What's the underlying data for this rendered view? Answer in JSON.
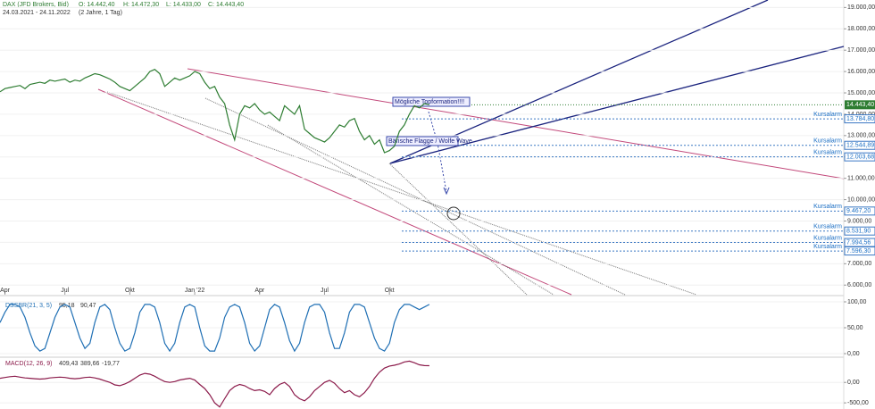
{
  "header": {
    "title": "DAX (JFD Brokers, Bid)",
    "ohlc": [
      "O: 14.442,40",
      "H: 14.472,30",
      "L: 14.433,00",
      "C: 14.443,40"
    ],
    "range": "24.03.2021 - 24.11.2022",
    "period": "(2 Jahre, 1 Tag)"
  },
  "chart_data": [
    {
      "type": "line",
      "name": "price",
      "color": "#2e7d32",
      "xlim": [
        0,
        169
      ],
      "xticks": [
        {
          "value": 1,
          "label": "Apr"
        },
        {
          "value": 13,
          "label": "Jul"
        },
        {
          "value": 26,
          "label": "Okt"
        },
        {
          "value": 39,
          "label": "Jan '22"
        },
        {
          "value": 52,
          "label": "Apr"
        },
        {
          "value": 65,
          "label": "Jul"
        },
        {
          "value": 78,
          "label": "Okt"
        }
      ],
      "ylim": [
        5550,
        19350
      ],
      "yticks": [
        {
          "value": 6000,
          "label": "6.000,00"
        },
        {
          "value": 7000,
          "label": "7.000,00"
        },
        {
          "value": 8000,
          "label": "8.000,00"
        },
        {
          "value": 9000,
          "label": "9.000,00"
        },
        {
          "value": 10000,
          "label": "10.000,00"
        },
        {
          "value": 11000,
          "label": "11.000,00"
        },
        {
          "value": 12000,
          "label": "12.000,00"
        },
        {
          "value": 13000,
          "label": "13.000,00"
        },
        {
          "value": 14000,
          "label": "14.000,00"
        },
        {
          "value": 15000,
          "label": "15.000,00"
        },
        {
          "value": 16000,
          "label": "16.000,00"
        },
        {
          "value": 17000,
          "label": "17.000,00"
        },
        {
          "value": 18000,
          "label": "18.000,00"
        },
        {
          "value": 19000,
          "label": "19.000,00"
        }
      ],
      "values": [
        15050,
        15200,
        15250,
        15300,
        15350,
        15200,
        15400,
        15450,
        15500,
        15450,
        15600,
        15550,
        15600,
        15650,
        15500,
        15600,
        15550,
        15700,
        15800,
        15900,
        15850,
        15750,
        15650,
        15500,
        15300,
        15200,
        15100,
        15300,
        15500,
        15700,
        16000,
        16100,
        15900,
        15300,
        15500,
        15700,
        15600,
        15700,
        15800,
        16000,
        15900,
        15500,
        15200,
        15300,
        14800,
        14500,
        13500,
        12800,
        14000,
        14400,
        14300,
        14500,
        14200,
        14000,
        14100,
        13900,
        13700,
        14400,
        14200,
        14000,
        14400,
        13300,
        13100,
        12900,
        12800,
        12700,
        12900,
        13200,
        13500,
        13400,
        13700,
        13800,
        13200,
        12800,
        13000,
        12600,
        12800,
        12200,
        12300,
        12500,
        13200,
        13500,
        14000,
        14400,
        14300,
        14500,
        14443
      ],
      "last_price": {
        "value": 14443.4,
        "label": "14.443,40"
      },
      "alarm_text": "Kursalarm",
      "alarms": [
        {
          "value": 13784.8,
          "label": "13.784,80"
        },
        {
          "value": 12544.89,
          "label": "12.544,89"
        },
        {
          "value": 12003.68,
          "label": "12.003,68"
        },
        {
          "value": 9467.2,
          "label": "9.467,20"
        },
        {
          "value": 8531.9,
          "label": "8.531,90"
        },
        {
          "value": 7994.56,
          "label": "7.994,56"
        },
        {
          "value": 7596.3,
          "label": "7.596,30"
        }
      ],
      "annotations": [
        "Mögliche Topformation!!!!",
        "Bärische Flagge / Wolfe Wave"
      ]
    },
    {
      "type": "line",
      "name": "dss",
      "title": "DSSBR(21, 3, 5)",
      "readout": [
        "95,18",
        "90,47"
      ],
      "color": "#1f6fb4",
      "xlim": [
        0,
        169
      ],
      "ylim": [
        0,
        100
      ],
      "yticks": [
        {
          "value": 0,
          "label": "0,00"
        },
        {
          "value": 50,
          "label": "50,00"
        },
        {
          "value": 100,
          "label": "100,00"
        }
      ],
      "values": [
        60,
        80,
        95,
        95,
        90,
        70,
        40,
        15,
        5,
        10,
        40,
        70,
        90,
        95,
        90,
        60,
        30,
        10,
        20,
        60,
        90,
        95,
        85,
        50,
        20,
        5,
        10,
        40,
        80,
        95,
        95,
        90,
        60,
        20,
        5,
        20,
        60,
        90,
        95,
        90,
        50,
        15,
        5,
        5,
        30,
        70,
        90,
        95,
        90,
        60,
        20,
        5,
        15,
        50,
        85,
        95,
        90,
        60,
        25,
        5,
        20,
        60,
        90,
        95,
        95,
        80,
        40,
        10,
        10,
        40,
        80,
        95,
        95,
        90,
        60,
        30,
        10,
        5,
        20,
        60,
        85,
        95,
        95,
        90,
        85,
        90,
        95
      ]
    },
    {
      "type": "line",
      "name": "macd",
      "title": "MACD(12, 26, 9)",
      "readout": [
        "409,43",
        "389,66",
        "-19,77"
      ],
      "color": "#8b1a4a",
      "xlim": [
        0,
        169
      ],
      "ylim": [
        -650,
        550
      ],
      "yticks": [
        {
          "value": -500,
          "label": "-500,00"
        },
        {
          "value": 0,
          "label": "0,00"
        }
      ],
      "values": [
        100,
        120,
        140,
        150,
        130,
        110,
        100,
        90,
        80,
        90,
        110,
        120,
        130,
        120,
        100,
        90,
        100,
        120,
        130,
        110,
        80,
        40,
        0,
        -60,
        -80,
        -40,
        20,
        100,
        180,
        220,
        200,
        150,
        80,
        20,
        0,
        20,
        60,
        80,
        100,
        60,
        -50,
        -150,
        -300,
        -500,
        -600,
        -400,
        -200,
        -100,
        -50,
        -80,
        -150,
        -200,
        -180,
        -220,
        -300,
        -150,
        -50,
        0,
        -100,
        -300,
        -400,
        -450,
        -350,
        -200,
        -100,
        0,
        50,
        -20,
        -150,
        -250,
        -200,
        -300,
        -350,
        -250,
        -100,
        100,
        250,
        350,
        400,
        420,
        450,
        500,
        520,
        480,
        430,
        410,
        409
      ]
    }
  ]
}
